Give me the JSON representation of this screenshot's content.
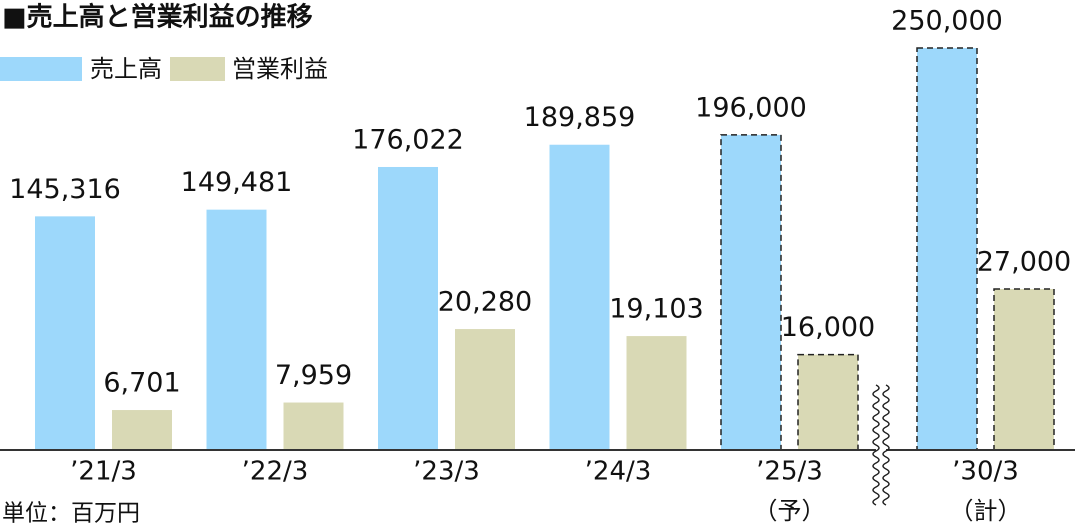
{
  "chart_data": {
    "type": "bar",
    "title": "■売上高と営業利益の推移",
    "unit_label": "単位：百万円",
    "categories": [
      "’21/3",
      "’22/3",
      "’23/3",
      "’24/3",
      "’25/3",
      "’30/3"
    ],
    "category_notes": [
      null,
      null,
      null,
      null,
      "（予）",
      "（計）"
    ],
    "forecast": [
      false,
      false,
      false,
      false,
      true,
      true
    ],
    "axis_break": true,
    "ylim": [
      0,
      255000
    ],
    "y2lim": [
      0,
      68750
    ],
    "series": [
      {
        "name": "売上高",
        "color": "#9dd8fb",
        "values": [
          145316,
          149481,
          176022,
          189859,
          196000,
          250000
        ],
        "value_labels": [
          "145,316",
          "149,481",
          "176,022",
          "189,859",
          "196,000",
          "250,000"
        ]
      },
      {
        "name": "営業利益",
        "color": "#d9d9b5",
        "axis": "y2",
        "values": [
          6701,
          7959,
          20280,
          19103,
          16000,
          27000
        ],
        "value_labels": [
          "6,701",
          "7,959",
          "20,280",
          "19,103",
          "16,000",
          "27,000"
        ]
      }
    ]
  }
}
